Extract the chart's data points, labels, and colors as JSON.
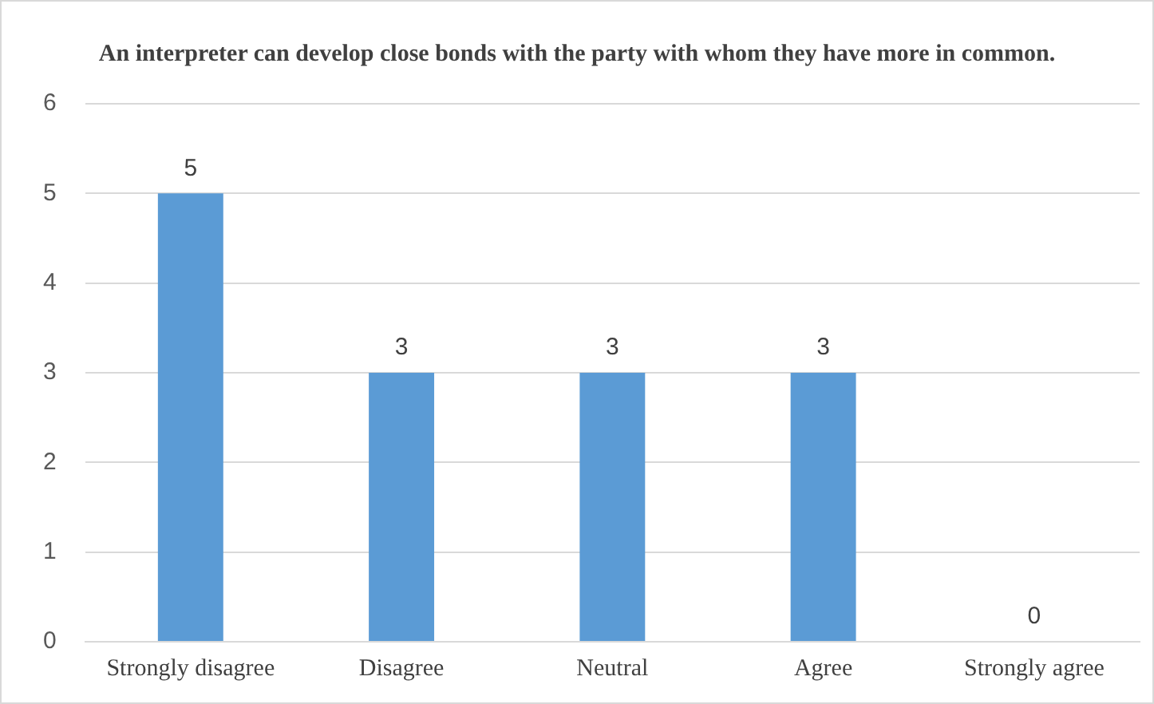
{
  "chart_data": {
    "type": "bar",
    "title": "An interpreter can develop close bonds with the party with whom they have more in common.",
    "categories": [
      "Strongly disagree",
      "Disagree",
      "Neutral",
      "Agree",
      "Strongly agree"
    ],
    "values": [
      5,
      3,
      3,
      3,
      0
    ],
    "color": "#5b9bd5",
    "ylim": [
      0,
      6
    ],
    "yticks": [
      0,
      1,
      2,
      3,
      4,
      5,
      6
    ],
    "grid": "y",
    "data_labels": true,
    "legend": false
  }
}
